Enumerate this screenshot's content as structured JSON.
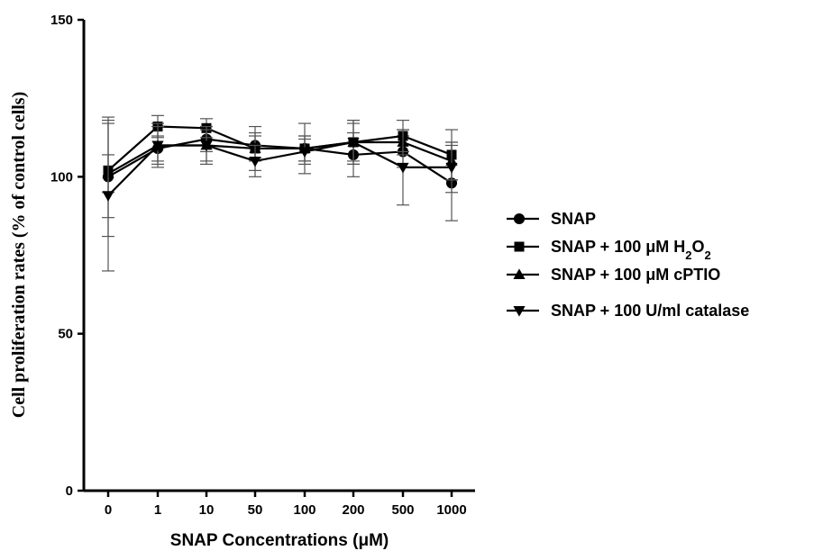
{
  "chart_data": {
    "type": "line",
    "xlabel": "SNAP Concentrations (μM)",
    "ylabel": "Cell proliferation rates (% of control cells)",
    "categories": [
      "0",
      "1",
      "10",
      "50",
      "100",
      "200",
      "500",
      "1000"
    ],
    "ylim": [
      0,
      150
    ],
    "yticks": [
      0,
      50,
      100,
      150
    ],
    "grid": false,
    "legend_position": "right",
    "series": [
      {
        "name": "SNAP",
        "legend_parts": [
          {
            "text": "SNAP"
          }
        ],
        "marker": "circle",
        "values": [
          100,
          109,
          112,
          110,
          109,
          107,
          108,
          98
        ],
        "errors": [
          19,
          4,
          4,
          4,
          4,
          7,
          5,
          12
        ]
      },
      {
        "name": "SNAP + 100 μM H2O2",
        "legend_parts": [
          {
            "text": "SNAP + 100 μM H"
          },
          {
            "text": "2",
            "sub": true
          },
          {
            "text": "O"
          },
          {
            "text": "2",
            "sub": true
          }
        ],
        "marker": "square",
        "values": [
          102,
          116,
          115.5,
          109,
          109,
          111,
          113,
          107
        ],
        "errors": [
          15,
          3.5,
          3,
          7,
          8,
          7,
          5,
          8
        ]
      },
      {
        "name": "SNAP + 100 μM cPTIO",
        "legend_parts": [
          {
            "text": "SNAP + 100 μM cPTIO"
          }
        ],
        "marker": "triangle-up",
        "values": [
          101,
          110,
          110,
          109,
          109,
          111,
          111,
          105
        ],
        "errors": [
          6,
          7,
          5,
          4,
          4,
          6,
          4,
          6
        ]
      },
      {
        "name": "SNAP + 100 U/ml catalase",
        "legend_parts": [
          {
            "text": "SNAP + 100 U/ml catalase"
          }
        ],
        "marker": "triangle-down",
        "values": [
          94,
          110,
          110,
          105,
          108,
          111,
          103,
          103
        ],
        "errors": [
          24,
          6,
          6,
          5,
          4,
          7,
          12,
          8
        ]
      }
    ]
  }
}
